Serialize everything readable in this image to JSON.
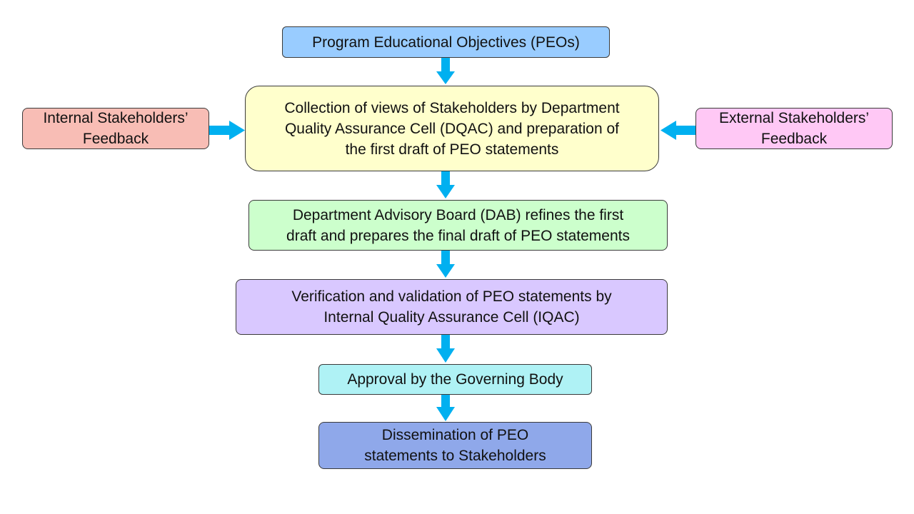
{
  "diagram": {
    "nodes": {
      "peos": {
        "lines": [
          "Program Educational Objectives (PEOs)"
        ],
        "color": "#99ccff"
      },
      "collection": {
        "lines": [
          "Collection of views of Stakeholders by Department",
          "Quality Assurance Cell (DQAC) and preparation of",
          "the first draft of PEO statements"
        ],
        "color": "#ffffcc"
      },
      "internal": {
        "lines": [
          "Internal Stakeholders’",
          "Feedback"
        ],
        "color": "#f8bdb5"
      },
      "external": {
        "lines": [
          "External Stakeholders’",
          "Feedback"
        ],
        "color": "#ffc8f5"
      },
      "dab": {
        "lines": [
          "Department Advisory Board (DAB) refines the first",
          "draft and prepares the final draft of PEO statements"
        ],
        "color": "#ccffcc"
      },
      "iqac": {
        "lines": [
          "Verification and validation of PEO statements by",
          "Internal Quality Assurance Cell (IQAC)"
        ],
        "color": "#d9c8ff"
      },
      "approval": {
        "lines": [
          "Approval by the Governing Body"
        ],
        "color": "#aff2f5"
      },
      "dissemination": {
        "lines": [
          "Dissemination of PEO",
          "statements to Stakeholders"
        ],
        "color": "#8fa8ea"
      }
    },
    "edges": [
      {
        "from": "peos",
        "to": "collection"
      },
      {
        "from": "internal",
        "to": "collection"
      },
      {
        "from": "external",
        "to": "collection"
      },
      {
        "from": "collection",
        "to": "dab"
      },
      {
        "from": "dab",
        "to": "iqac"
      },
      {
        "from": "iqac",
        "to": "approval"
      },
      {
        "from": "approval",
        "to": "dissemination"
      }
    ],
    "arrow_color": "#00b0f0"
  }
}
